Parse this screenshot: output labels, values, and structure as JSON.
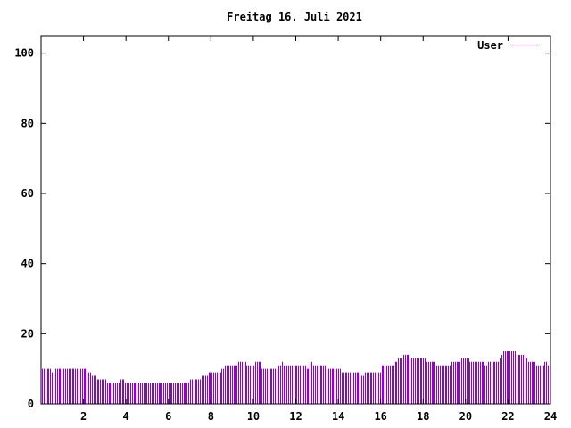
{
  "chart_data": {
    "type": "bar",
    "title": "Freitag 16. Juli 2021",
    "xlabel": "",
    "ylabel": "",
    "xlim": [
      0,
      24
    ],
    "ylim": [
      0,
      105
    ],
    "x_ticks": [
      "2",
      "4",
      "6",
      "8",
      "10",
      "12",
      "14",
      "16",
      "18",
      "20",
      "22",
      "24"
    ],
    "y_ticks": [
      "0",
      "20",
      "40",
      "60",
      "80",
      "100"
    ],
    "grid": false,
    "legend": "top-right",
    "series": [
      {
        "name": "User",
        "color": "#9400d3",
        "values": [
          10,
          10,
          10,
          10,
          10,
          10,
          9,
          9,
          10,
          10,
          10,
          10,
          10,
          10,
          10,
          10,
          10,
          10,
          10,
          10,
          10,
          10,
          10,
          10,
          10,
          10,
          10,
          10,
          9,
          9,
          8,
          8,
          8,
          7,
          7,
          7,
          7,
          7,
          7,
          6,
          6,
          6,
          6,
          6,
          6,
          6,
          6,
          7,
          7,
          7,
          6,
          6,
          6,
          6,
          6,
          6,
          6,
          6,
          6,
          6,
          6,
          6,
          6,
          6,
          6,
          6,
          6,
          6,
          6,
          6,
          6,
          6,
          6,
          6,
          6,
          6,
          6,
          6,
          6,
          6,
          6,
          6,
          6,
          6,
          6,
          6,
          6,
          6,
          6,
          7,
          7,
          7,
          7,
          7,
          7,
          7,
          8,
          8,
          8,
          8,
          9,
          9,
          9,
          9,
          9,
          9,
          9,
          9,
          10,
          10,
          11,
          11,
          11,
          11,
          11,
          11,
          11,
          11,
          12,
          12,
          12,
          12,
          12,
          11,
          11,
          11,
          11,
          11,
          12,
          12,
          12,
          12,
          10,
          10,
          10,
          10,
          10,
          10,
          10,
          10,
          10,
          10,
          11,
          11,
          12,
          11,
          11,
          11,
          11,
          11,
          11,
          11,
          11,
          11,
          11,
          11,
          11,
          11,
          11,
          10,
          10,
          12,
          12,
          11,
          11,
          11,
          11,
          11,
          11,
          11,
          11,
          10,
          10,
          10,
          10,
          10,
          10,
          10,
          10,
          10,
          9,
          9,
          9,
          9,
          9,
          9,
          9,
          9,
          9,
          9,
          9,
          9,
          8,
          8,
          9,
          9,
          9,
          9,
          9,
          9,
          9,
          9,
          9,
          9,
          11,
          11,
          11,
          11,
          11,
          11,
          11,
          11,
          12,
          12,
          13,
          13,
          13,
          14,
          14,
          14,
          14,
          13,
          13,
          13,
          13,
          13,
          13,
          13,
          13,
          13,
          13,
          12,
          12,
          12,
          12,
          12,
          12,
          11,
          11,
          11,
          11,
          11,
          11,
          11,
          11,
          11,
          12,
          12,
          12,
          12,
          12,
          12,
          13,
          13,
          13,
          13,
          13,
          12,
          12,
          12,
          12,
          12,
          12,
          12,
          12,
          12,
          11,
          11,
          12,
          12,
          12,
          12,
          12,
          12,
          12,
          13,
          14,
          15,
          15,
          15,
          15,
          15,
          15,
          15,
          15,
          14,
          14,
          14,
          14,
          14,
          14,
          13,
          12,
          12,
          12,
          12,
          12,
          11,
          11,
          11,
          11,
          11,
          12,
          12,
          11,
          11
        ]
      }
    ]
  }
}
